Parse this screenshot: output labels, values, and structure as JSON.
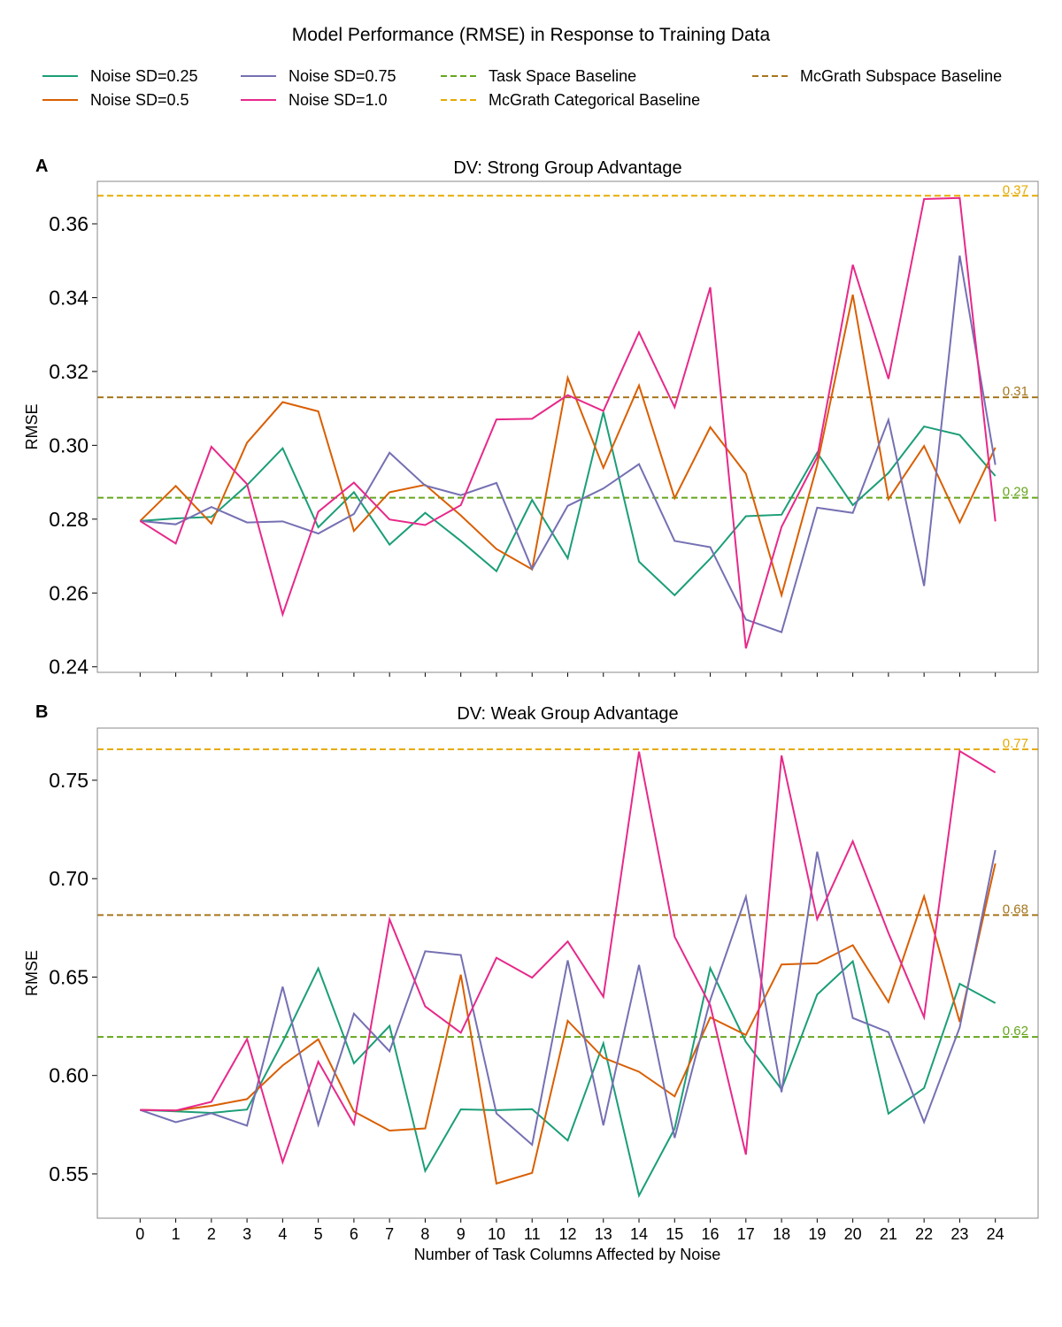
{
  "figure_title": "Model Performance (RMSE) in Response to Training Data",
  "legend": [
    {
      "label": "Noise SD=0.25",
      "color": "#1b9e77",
      "dashed": false
    },
    {
      "label": "Noise SD=0.5",
      "color": "#d95f02",
      "dashed": false
    },
    {
      "label": "Noise SD=0.75",
      "color": "#7570b3",
      "dashed": false
    },
    {
      "label": "Noise SD=1.0",
      "color": "#e7298a",
      "dashed": false
    },
    {
      "label": "Task Space Baseline",
      "color": "#66a61e",
      "dashed": true
    },
    {
      "label": "McGrath Categorical Baseline",
      "color": "#e6ab02",
      "dashed": true
    },
    {
      "label": "McGrath Subspace Baseline",
      "color": "#a6761d",
      "dashed": true
    }
  ],
  "xlabel": "Number of Task Columns Affected by Noise",
  "chart_data": [
    {
      "type": "line",
      "panel_letter": "A",
      "title": "DV: Strong Group Advantage",
      "ylabel": "RMSE",
      "x": [
        0,
        1,
        2,
        3,
        4,
        5,
        6,
        7,
        8,
        9,
        10,
        11,
        12,
        13,
        14,
        15,
        16,
        17,
        18,
        19,
        20,
        21,
        22,
        23,
        24
      ],
      "xlim": [
        -1.2,
        25.2
      ],
      "ylim": [
        0.2385,
        0.3715
      ],
      "yticks": [
        0.24,
        0.26,
        0.28,
        0.3,
        0.32,
        0.34,
        0.36
      ],
      "ytick_labels": [
        "0.24",
        "0.26",
        "0.28",
        "0.30",
        "0.32",
        "0.34",
        "0.36"
      ],
      "show_xtick_labels": false,
      "series": [
        {
          "name": "Noise SD=0.25",
          "color": "#1b9e77",
          "values": [
            0.2795,
            0.2802,
            0.2806,
            0.2892,
            0.2992,
            0.2778,
            0.2873,
            0.2731,
            0.2817,
            0.2741,
            0.2659,
            0.2852,
            0.2694,
            0.309,
            0.2685,
            0.2594,
            0.2693,
            0.2808,
            0.2812,
            0.298,
            0.2838,
            0.2925,
            0.3051,
            0.3028,
            0.2917
          ]
        },
        {
          "name": "Noise SD=0.5",
          "color": "#d95f02",
          "values": [
            0.2795,
            0.289,
            0.2788,
            0.3007,
            0.3117,
            0.3092,
            0.2768,
            0.2873,
            0.2893,
            0.281,
            0.2719,
            0.2664,
            0.3183,
            0.2939,
            0.3162,
            0.2857,
            0.3049,
            0.2923,
            0.2594,
            0.2947,
            0.3408,
            0.2854,
            0.2998,
            0.2791,
            0.2994
          ]
        },
        {
          "name": "Noise SD=0.75",
          "color": "#7570b3",
          "values": [
            0.2795,
            0.2786,
            0.2833,
            0.2791,
            0.2794,
            0.2761,
            0.2814,
            0.298,
            0.2891,
            0.2865,
            0.2898,
            0.2665,
            0.2836,
            0.2883,
            0.2949,
            0.2741,
            0.2724,
            0.2528,
            0.2494,
            0.2831,
            0.2817,
            0.3069,
            0.2619,
            0.3514,
            0.2947
          ]
        },
        {
          "name": "Noise SD=1.0",
          "color": "#e7298a",
          "values": [
            0.2795,
            0.2734,
            0.2996,
            0.2895,
            0.2542,
            0.282,
            0.2899,
            0.2799,
            0.2784,
            0.2838,
            0.307,
            0.3072,
            0.3136,
            0.3093,
            0.3306,
            0.3103,
            0.3428,
            0.245,
            0.2779,
            0.2967,
            0.3489,
            0.318,
            0.3667,
            0.367,
            0.2794
          ]
        }
      ],
      "baselines": [
        {
          "name": "Task Space Baseline",
          "value": 0.2858,
          "label": "0.29",
          "color": "#66a61e"
        },
        {
          "name": "McGrath Subspace Baseline",
          "value": 0.313,
          "label": "0.31",
          "color": "#a6761d"
        },
        {
          "name": "McGrath Categorical Baseline",
          "value": 0.3676,
          "label": "0.37",
          "color": "#e6ab02"
        }
      ]
    },
    {
      "type": "line",
      "panel_letter": "B",
      "title": "DV: Weak Group Advantage",
      "ylabel": "RMSE",
      "x": [
        0,
        1,
        2,
        3,
        4,
        5,
        6,
        7,
        8,
        9,
        10,
        11,
        12,
        13,
        14,
        15,
        16,
        17,
        18,
        19,
        20,
        21,
        22,
        23,
        24
      ],
      "xlim": [
        -1.2,
        25.2
      ],
      "ylim": [
        0.5275,
        0.7765
      ],
      "yticks": [
        0.55,
        0.6,
        0.65,
        0.7,
        0.75
      ],
      "ytick_labels": [
        "0.55",
        "0.60",
        "0.65",
        "0.70",
        "0.75"
      ],
      "show_xtick_labels": true,
      "xtick_labels": [
        "0",
        "1",
        "2",
        "3",
        "4",
        "5",
        "6",
        "7",
        "8",
        "9",
        "10",
        "11",
        "12",
        "13",
        "14",
        "15",
        "16",
        "17",
        "18",
        "19",
        "20",
        "21",
        "22",
        "23",
        "24"
      ],
      "series": [
        {
          "name": "Noise SD=0.25",
          "color": "#1b9e77",
          "values": [
            0.5825,
            0.5818,
            0.581,
            0.5827,
            0.617,
            0.6544,
            0.6062,
            0.6252,
            0.5515,
            0.5828,
            0.5824,
            0.5829,
            0.567,
            0.6163,
            0.539,
            0.573,
            0.6545,
            0.617,
            0.593,
            0.6411,
            0.658,
            0.5806,
            0.5936,
            0.6466,
            0.6368
          ]
        },
        {
          "name": "Noise SD=0.5",
          "color": "#d95f02",
          "values": [
            0.5825,
            0.5822,
            0.5846,
            0.588,
            0.6051,
            0.6184,
            0.5817,
            0.572,
            0.5731,
            0.6512,
            0.5451,
            0.5505,
            0.6278,
            0.609,
            0.6019,
            0.5894,
            0.6295,
            0.6206,
            0.6564,
            0.657,
            0.6662,
            0.6373,
            0.691,
            0.6272,
            0.7077
          ]
        },
        {
          "name": "Noise SD=0.75",
          "color": "#7570b3",
          "values": [
            0.5825,
            0.5763,
            0.5808,
            0.5745,
            0.6451,
            0.575,
            0.6314,
            0.6123,
            0.6631,
            0.6612,
            0.5807,
            0.5648,
            0.6585,
            0.5747,
            0.6562,
            0.5683,
            0.6384,
            0.6908,
            0.5915,
            0.7137,
            0.6292,
            0.622,
            0.5763,
            0.6244,
            0.7145
          ]
        },
        {
          "name": "Noise SD=1.0",
          "color": "#e7298a",
          "values": [
            0.5825,
            0.5822,
            0.5866,
            0.6185,
            0.556,
            0.607,
            0.5753,
            0.6793,
            0.6351,
            0.6217,
            0.6598,
            0.6497,
            0.6681,
            0.64,
            0.7645,
            0.6705,
            0.6356,
            0.5598,
            0.7626,
            0.6794,
            0.719,
            0.6724,
            0.6296,
            0.7648,
            0.7539
          ]
        }
      ],
      "baselines": [
        {
          "name": "Task Space Baseline",
          "value": 0.6196,
          "label": "0.62",
          "color": "#66a61e"
        },
        {
          "name": "McGrath Subspace Baseline",
          "value": 0.6815,
          "label": "0.68",
          "color": "#a6761d"
        },
        {
          "name": "McGrath Categorical Baseline",
          "value": 0.7657,
          "label": "0.77",
          "color": "#e6ab02"
        }
      ]
    }
  ]
}
